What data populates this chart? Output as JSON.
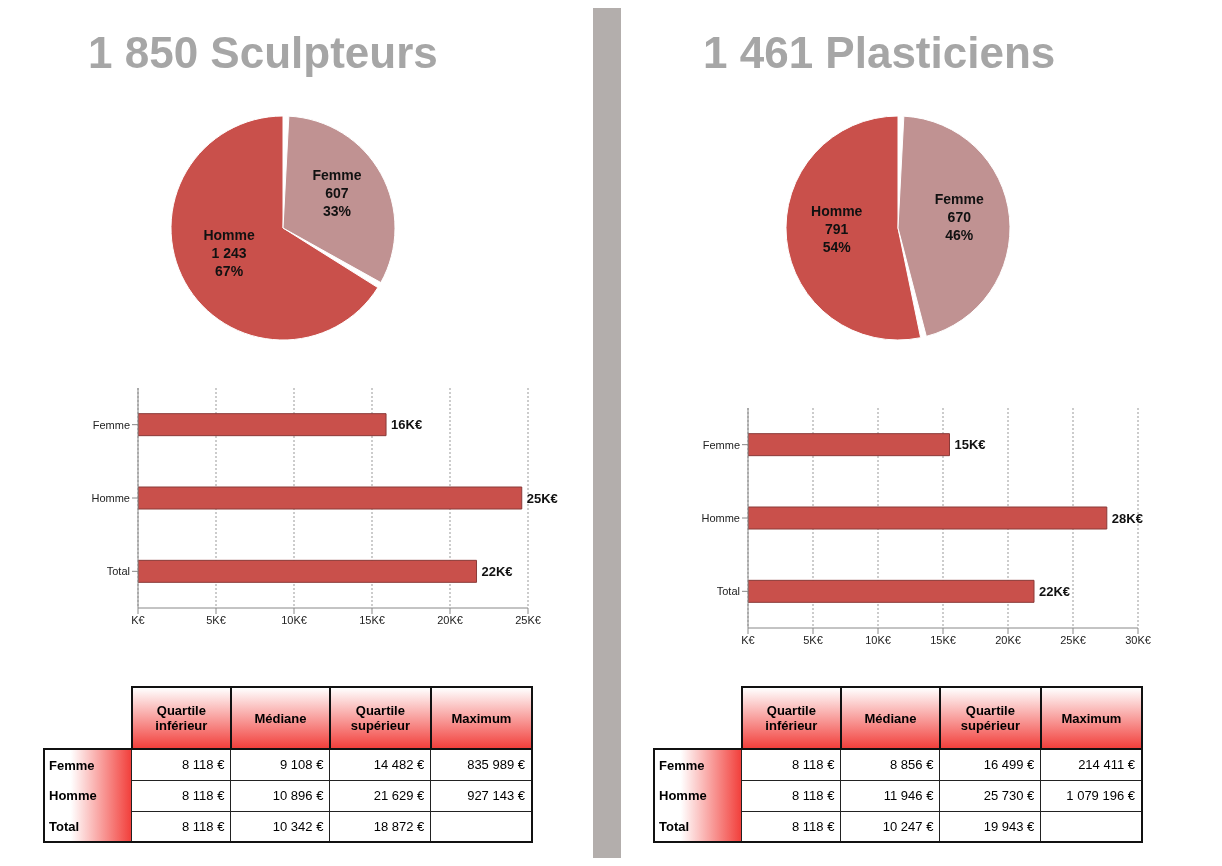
{
  "chart_data": [
    {
      "type": "pie",
      "title": "1 850 Sculpteurs",
      "categories": [
        "Homme",
        "Femme"
      ],
      "values": [
        1243,
        607
      ],
      "value_labels": [
        "1 243\n67%",
        "607\n33%"
      ],
      "colors": [
        "#c9504b",
        "#c09292"
      ]
    },
    {
      "type": "bar",
      "orientation": "horizontal",
      "categories": [
        "Femme",
        "Homme",
        "Total"
      ],
      "values": [
        15.9,
        24.6,
        21.7
      ],
      "value_labels": [
        "16K€",
        "25K€",
        "22K€"
      ],
      "color": "#c9504b",
      "xlim": [
        0,
        25
      ],
      "xticks": [
        {
          "value": 0,
          "label": "K€"
        },
        {
          "value": 5,
          "label": "5K€"
        },
        {
          "value": 10,
          "label": "10K€"
        },
        {
          "value": 15,
          "label": "15K€"
        },
        {
          "value": 20,
          "label": "20K€"
        },
        {
          "value": 25,
          "label": "25K€"
        }
      ],
      "grid": "x"
    },
    {
      "type": "other",
      "categories": [
        "Quartile inférieur",
        "Médiane",
        "Quartile supérieur",
        "Maximum"
      ],
      "y_categories": [
        "Femme",
        "Homme",
        "Total"
      ],
      "cell_labels": [
        [
          "8 118 €",
          "9 108 €",
          "14 482 €",
          "835 989 €"
        ],
        [
          "8 118 €",
          "10 896 €",
          "21 629 €",
          "927 143 €"
        ],
        [
          "8 118 €",
          "10 342 €",
          "18 872 €",
          null
        ]
      ]
    },
    {
      "type": "pie",
      "title": "1 461 Plasticiens",
      "categories": [
        "Homme",
        "Femme"
      ],
      "values": [
        791,
        670
      ],
      "value_labels": [
        "791\n54%",
        "670\n46%"
      ],
      "colors": [
        "#c9504b",
        "#c09292"
      ]
    },
    {
      "type": "bar",
      "orientation": "horizontal",
      "categories": [
        "Femme",
        "Homme",
        "Total"
      ],
      "values": [
        15.5,
        27.6,
        22.0
      ],
      "value_labels": [
        "15K€",
        "28K€",
        "22K€"
      ],
      "color": "#c9504b",
      "xlim": [
        0,
        30
      ],
      "xticks": [
        {
          "value": 0,
          "label": "K€"
        },
        {
          "value": 5,
          "label": "5K€"
        },
        {
          "value": 10,
          "label": "10K€"
        },
        {
          "value": 15,
          "label": "15K€"
        },
        {
          "value": 20,
          "label": "20K€"
        },
        {
          "value": 25,
          "label": "25K€"
        },
        {
          "value": 30,
          "label": "30K€"
        }
      ],
      "grid": "x"
    },
    {
      "type": "other",
      "categories": [
        "Quartile inférieur",
        "Médiane",
        "Quartile supérieur",
        "Maximum"
      ],
      "y_categories": [
        "Femme",
        "Homme",
        "Total"
      ],
      "cell_labels": [
        [
          "8 118 €",
          "8 856 €",
          "16 499 €",
          "214 411 €"
        ],
        [
          "8 118 €",
          "11 946 €",
          "25 730 €",
          "1 079 196 €"
        ],
        [
          "8 118 €",
          "10 247 €",
          "19 943 €",
          null
        ]
      ]
    }
  ]
}
